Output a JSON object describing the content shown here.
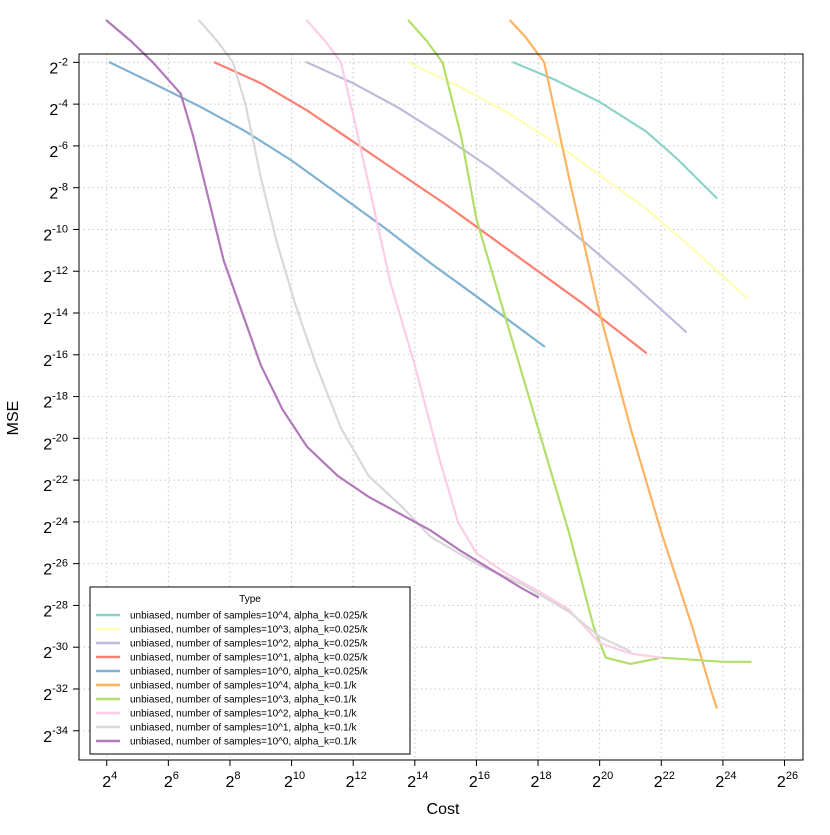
{
  "chart_data": {
    "type": "line",
    "xlabel": "Cost",
    "ylabel": "MSE",
    "x_scale": "log2",
    "y_scale": "log2",
    "xlim_log2": [
      3.1,
      26.6
    ],
    "ylim_log2": [
      -35.4,
      -1.6
    ],
    "x_ticks": [
      4,
      6,
      8,
      10,
      12,
      14,
      16,
      18,
      20,
      22,
      24,
      26
    ],
    "x_tick_labels": [
      "2^4",
      "2^6",
      "2^8",
      "2^10",
      "2^12",
      "2^14",
      "2^16",
      "2^18",
      "2^20",
      "2^22",
      "2^24",
      "2^26"
    ],
    "y_ticks": [
      -2,
      -4,
      -6,
      -8,
      -10,
      -12,
      -14,
      -16,
      -18,
      -20,
      -22,
      -24,
      -26,
      -28,
      -30,
      -32,
      -34
    ],
    "y_tick_labels": [
      "2^-2",
      "2^-4",
      "2^-6",
      "2^-8",
      "2^-10",
      "2^-12",
      "2^-14",
      "2^-16",
      "2^-18",
      "2^-20",
      "2^-22",
      "2^-24",
      "2^-26",
      "2^-28",
      "2^-30",
      "2^-32",
      "2^-34"
    ],
    "grid": true,
    "legend_position": "bottom-left",
    "legend_title": "Type",
    "series": [
      {
        "name": "unbiased, number of samples=10^4, alpha_k=0.025/k",
        "color": "#8DD3C7",
        "points": [
          [
            17.2,
            -2.0
          ],
          [
            18.5,
            -2.8
          ],
          [
            20.0,
            -3.9
          ],
          [
            21.5,
            -5.3
          ],
          [
            22.5,
            -6.6
          ],
          [
            23.8,
            -8.5
          ]
        ]
      },
      {
        "name": "unbiased, number of samples=10^3, alpha_k=0.025/k",
        "color": "#FFFFB3",
        "points": [
          [
            13.8,
            -2.0
          ],
          [
            15.5,
            -3.2
          ],
          [
            17.0,
            -4.4
          ],
          [
            18.5,
            -5.8
          ],
          [
            20.0,
            -7.4
          ],
          [
            21.5,
            -9.0
          ],
          [
            23.0,
            -10.9
          ],
          [
            24.8,
            -13.3
          ]
        ]
      },
      {
        "name": "unbiased, number of samples=10^2, alpha_k=0.025/k",
        "color": "#BEBADA",
        "points": [
          [
            10.5,
            -2.0
          ],
          [
            12.0,
            -3.0
          ],
          [
            13.5,
            -4.2
          ],
          [
            15.0,
            -5.6
          ],
          [
            16.5,
            -7.1
          ],
          [
            18.0,
            -8.8
          ],
          [
            19.5,
            -10.6
          ],
          [
            21.0,
            -12.5
          ],
          [
            22.8,
            -14.9
          ]
        ]
      },
      {
        "name": "unbiased, number of samples=10^1, alpha_k=0.025/k",
        "color": "#FB8072",
        "points": [
          [
            7.5,
            -2.0
          ],
          [
            9.0,
            -3.0
          ],
          [
            10.5,
            -4.3
          ],
          [
            12.0,
            -5.8
          ],
          [
            13.5,
            -7.3
          ],
          [
            15.0,
            -8.8
          ],
          [
            16.5,
            -10.4
          ],
          [
            18.0,
            -12.0
          ],
          [
            19.5,
            -13.6
          ],
          [
            21.5,
            -15.9
          ]
        ]
      },
      {
        "name": "unbiased, number of samples=10^0, alpha_k=0.025/k",
        "color": "#80B1D3",
        "points": [
          [
            4.1,
            -2.0
          ],
          [
            5.5,
            -3.0
          ],
          [
            7.0,
            -4.1
          ],
          [
            8.5,
            -5.3
          ],
          [
            10.0,
            -6.7
          ],
          [
            11.5,
            -8.3
          ],
          [
            13.0,
            -9.9
          ],
          [
            14.5,
            -11.6
          ],
          [
            16.0,
            -13.2
          ],
          [
            18.2,
            -15.6
          ]
        ]
      },
      {
        "name": "unbiased, number of samples=10^4, alpha_k=0.1/k",
        "color": "#FDB462",
        "points": [
          [
            17.1,
            0.0
          ],
          [
            17.6,
            -0.8
          ],
          [
            18.2,
            -2.0
          ],
          [
            19.0,
            -7.5
          ],
          [
            20.0,
            -14.0
          ],
          [
            21.0,
            -19.5
          ],
          [
            22.0,
            -24.5
          ],
          [
            23.0,
            -29.0
          ],
          [
            23.6,
            -32.0
          ],
          [
            23.8,
            -32.9
          ]
        ]
      },
      {
        "name": "unbiased, number of samples=10^3, alpha_k=0.1/k",
        "color": "#B3DE69",
        "points": [
          [
            13.8,
            0.0
          ],
          [
            14.4,
            -1.0
          ],
          [
            14.9,
            -2.0
          ],
          [
            15.5,
            -5.5
          ],
          [
            16.0,
            -9.5
          ],
          [
            17.0,
            -14.5
          ],
          [
            18.0,
            -19.5
          ],
          [
            19.0,
            -24.5
          ],
          [
            19.8,
            -29.0
          ],
          [
            20.2,
            -30.5
          ],
          [
            21.0,
            -30.8
          ],
          [
            22.0,
            -30.5
          ],
          [
            23.0,
            -30.6
          ],
          [
            24.0,
            -30.7
          ],
          [
            24.9,
            -30.7
          ]
        ]
      },
      {
        "name": "unbiased, number of samples=10^2, alpha_k=0.1/k",
        "color": "#FCCDE5",
        "points": [
          [
            10.5,
            0.0
          ],
          [
            11.1,
            -1.0
          ],
          [
            11.6,
            -2.0
          ],
          [
            12.0,
            -4.5
          ],
          [
            12.6,
            -8.5
          ],
          [
            13.2,
            -12.5
          ],
          [
            14.0,
            -16.5
          ],
          [
            14.8,
            -21.0
          ],
          [
            15.4,
            -24.0
          ],
          [
            16.0,
            -25.5
          ],
          [
            17.0,
            -26.5
          ],
          [
            18.0,
            -27.3
          ],
          [
            19.0,
            -28.2
          ],
          [
            20.0,
            -29.8
          ],
          [
            21.0,
            -30.3
          ],
          [
            22.0,
            -30.5
          ]
        ]
      },
      {
        "name": "unbiased, number of samples=10^1, alpha_k=0.1/k",
        "color": "#D9D9D9",
        "points": [
          [
            7.0,
            0.0
          ],
          [
            7.6,
            -1.0
          ],
          [
            8.1,
            -2.0
          ],
          [
            8.5,
            -4.0
          ],
          [
            9.0,
            -7.5
          ],
          [
            9.5,
            -10.5
          ],
          [
            10.1,
            -13.5
          ],
          [
            10.8,
            -16.5
          ],
          [
            11.6,
            -19.5
          ],
          [
            12.5,
            -21.8
          ],
          [
            13.6,
            -23.3
          ],
          [
            14.5,
            -24.7
          ],
          [
            16.0,
            -26.0
          ],
          [
            17.5,
            -27.0
          ],
          [
            19.0,
            -28.3
          ],
          [
            20.0,
            -29.5
          ],
          [
            21.0,
            -30.2
          ]
        ]
      },
      {
        "name": "unbiased, number of samples=10^0, alpha_k=0.1/k",
        "color": "#B178BA",
        "points": [
          [
            4.0,
            0.0
          ],
          [
            4.8,
            -1.0
          ],
          [
            5.5,
            -2.0
          ],
          [
            6.1,
            -3.0
          ],
          [
            6.4,
            -3.5
          ],
          [
            6.8,
            -5.5
          ],
          [
            7.3,
            -8.5
          ],
          [
            7.8,
            -11.5
          ],
          [
            8.4,
            -14.0
          ],
          [
            9.0,
            -16.5
          ],
          [
            9.7,
            -18.6
          ],
          [
            10.5,
            -20.4
          ],
          [
            11.5,
            -21.8
          ],
          [
            12.5,
            -22.8
          ],
          [
            13.5,
            -23.6
          ],
          [
            14.5,
            -24.4
          ],
          [
            15.5,
            -25.4
          ],
          [
            16.5,
            -26.3
          ],
          [
            17.5,
            -27.2
          ],
          [
            18.0,
            -27.6
          ]
        ]
      }
    ]
  }
}
